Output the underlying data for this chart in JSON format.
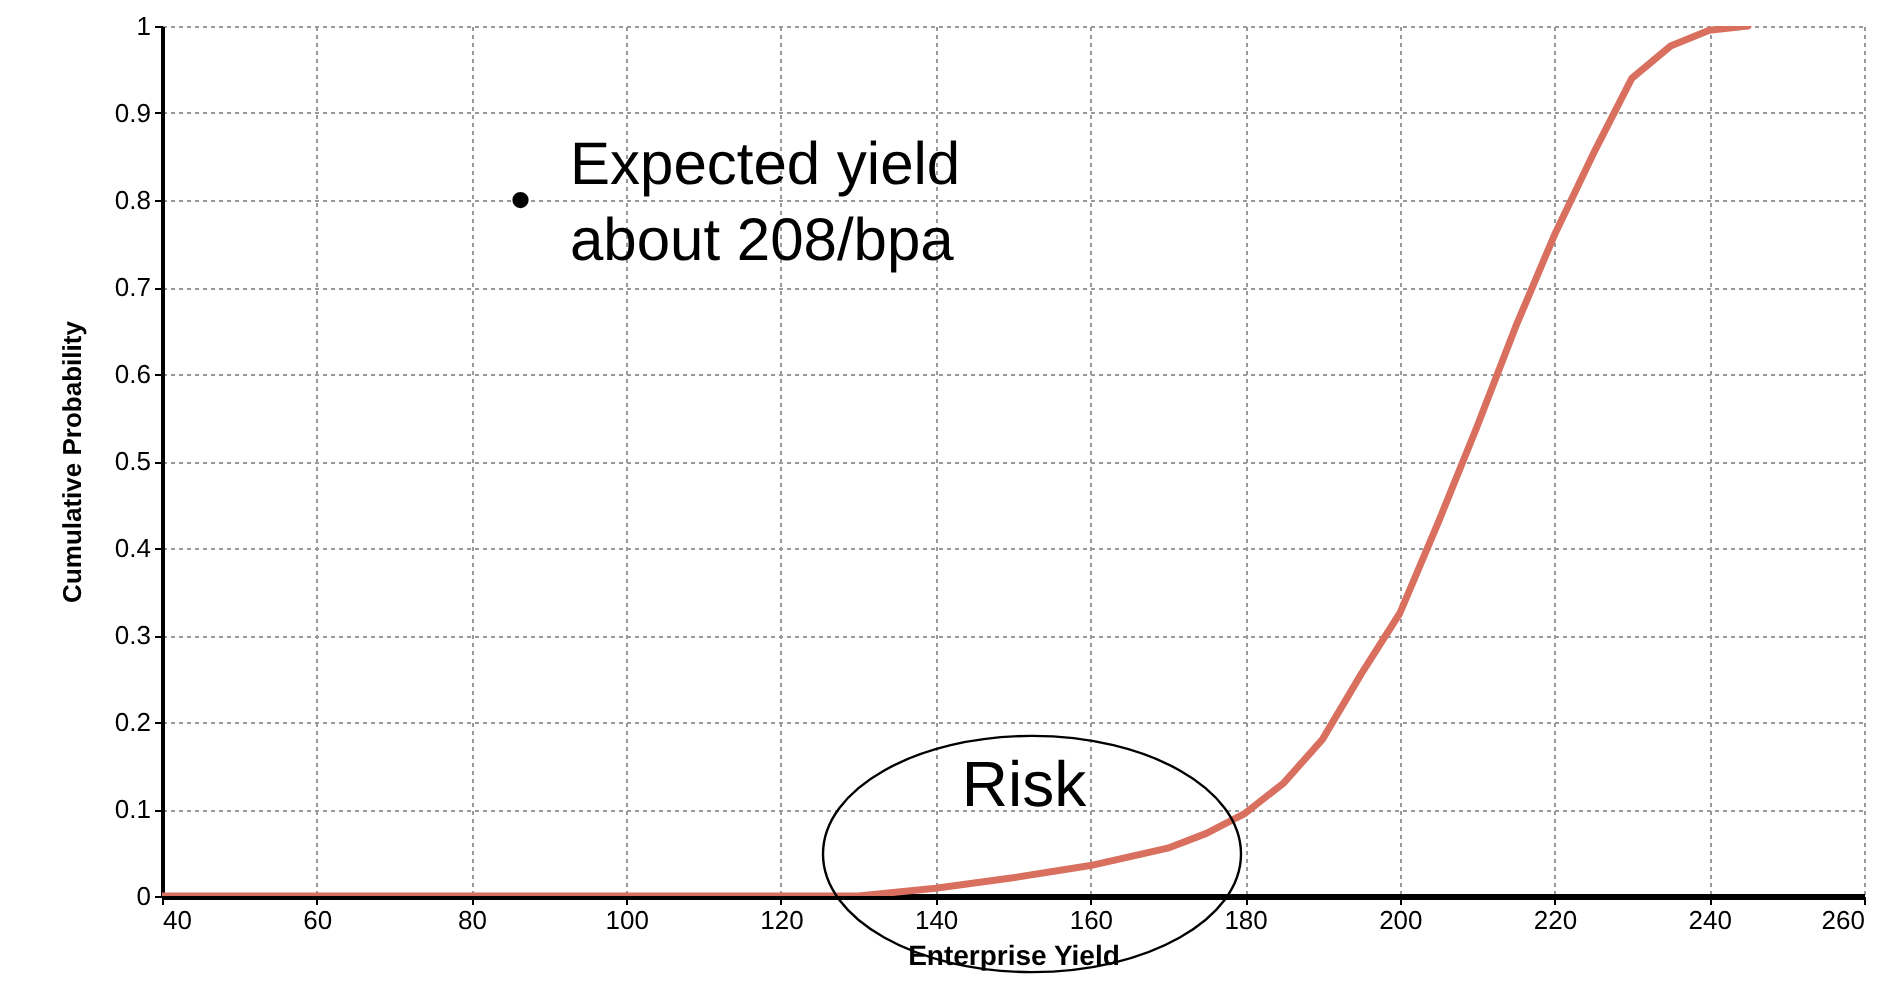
{
  "chart_data": {
    "type": "line",
    "xlabel": "Enterprise  Yield",
    "ylabel": "Cumulative Probability",
    "x": [
      40,
      130,
      140,
      150,
      160,
      170,
      175,
      180,
      185,
      190,
      195,
      200,
      205,
      210,
      215,
      220,
      225,
      230,
      235,
      240,
      245
    ],
    "series": [
      {
        "color": "#d9705f",
        "values": [
          0,
          0,
          0.009,
          0.021,
          0.035,
          0.055,
          0.072,
          0.095,
          0.13,
          0.18,
          0.255,
          0.325,
          0.43,
          0.54,
          0.655,
          0.76,
          0.853,
          0.94,
          0.977,
          0.995,
          1
        ]
      }
    ],
    "xlim": [
      40,
      260
    ],
    "xticks": [
      40,
      60,
      80,
      100,
      120,
      140,
      160,
      180,
      200,
      220,
      240,
      260
    ],
    "ylim": [
      0,
      1
    ],
    "yticks": [
      0,
      0.1,
      0.2,
      0.3,
      0.4,
      0.5,
      0.6,
      0.7,
      0.8,
      0.9,
      1
    ],
    "grid": true,
    "marker": "none",
    "line_style": "solid",
    "annotations": [
      "•",
      "Expected yield\nabout 208/bpa",
      "Risk"
    ]
  }
}
